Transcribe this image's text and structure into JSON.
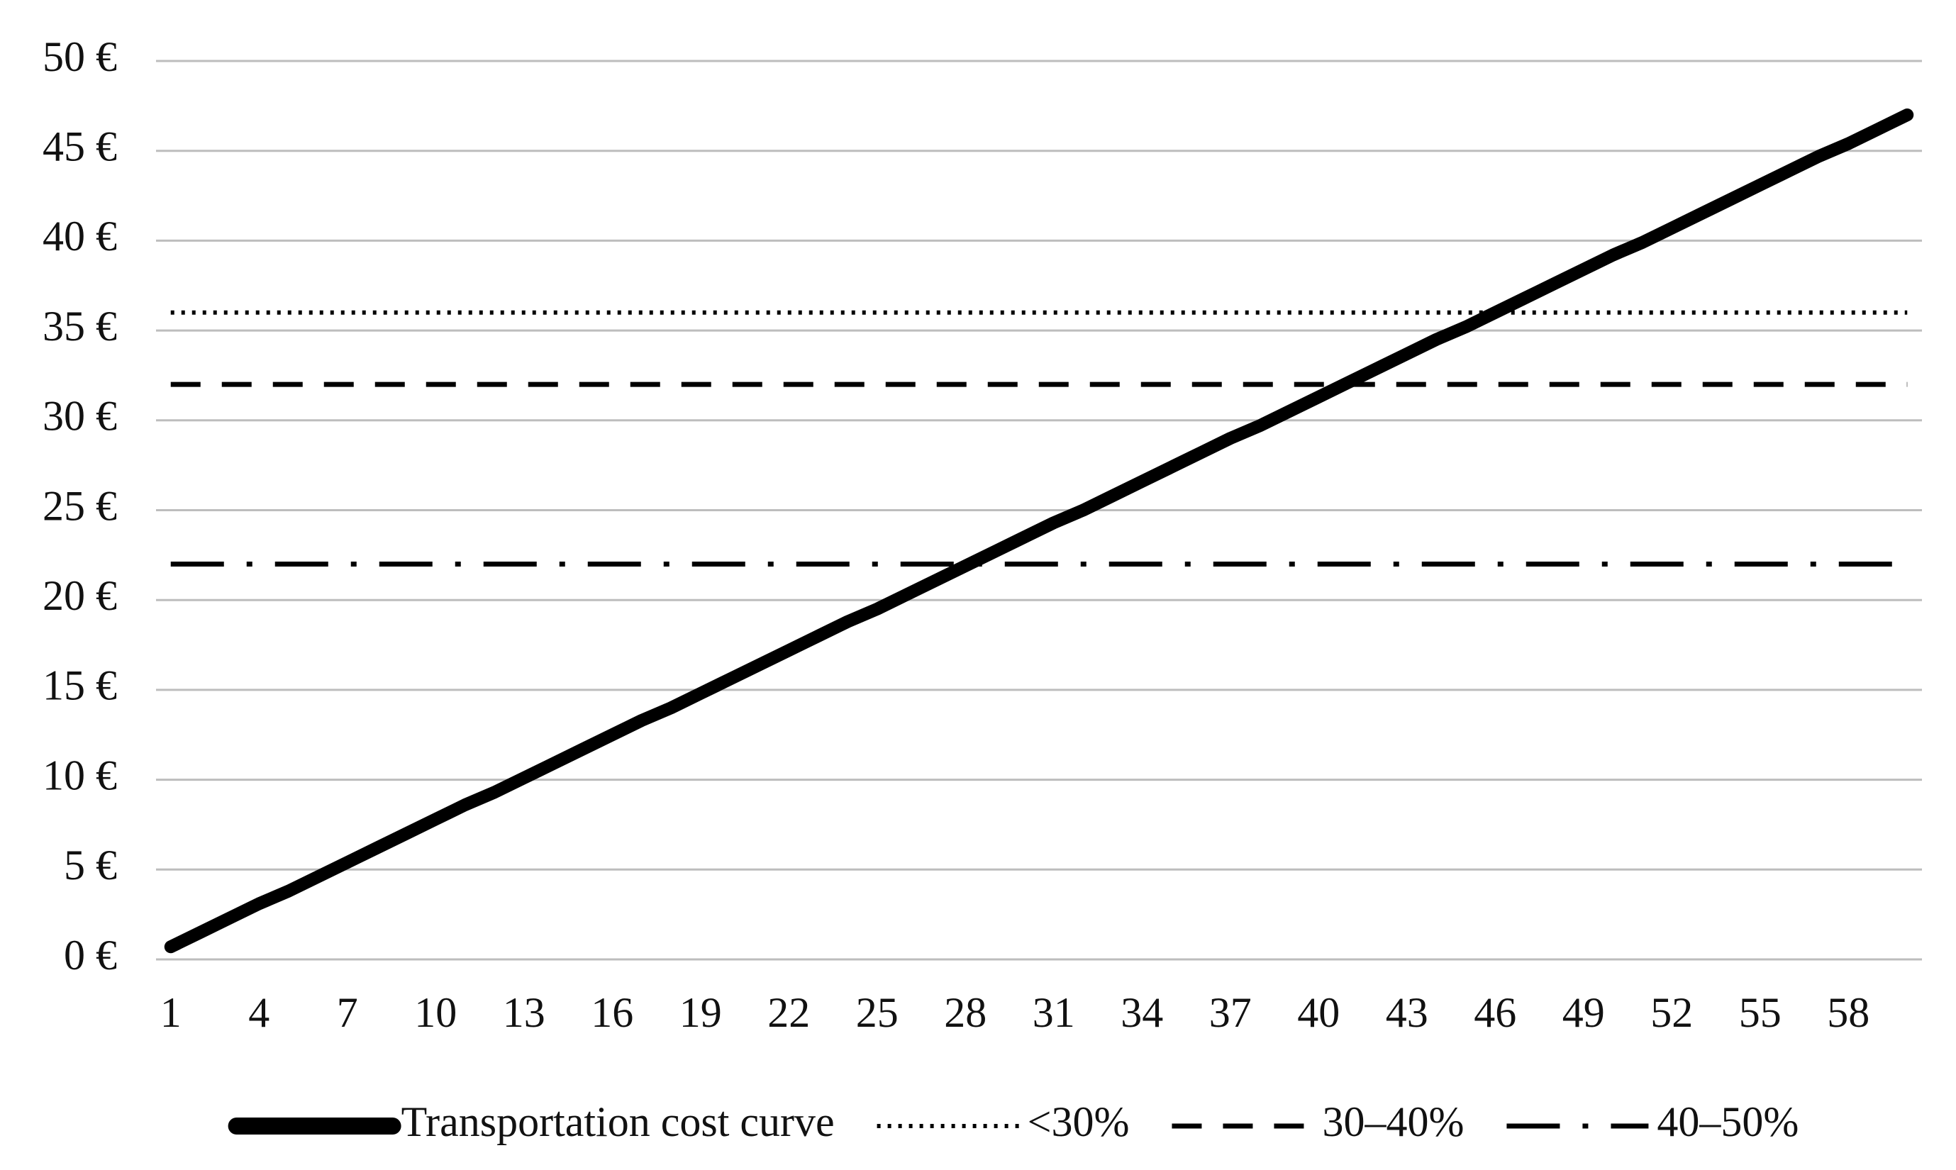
{
  "chart_data": {
    "type": "line",
    "x": [
      1,
      2,
      3,
      4,
      5,
      6,
      7,
      8,
      9,
      10,
      11,
      12,
      13,
      14,
      15,
      16,
      17,
      18,
      19,
      20,
      21,
      22,
      23,
      24,
      25,
      26,
      27,
      28,
      29,
      30,
      31,
      32,
      33,
      34,
      35,
      36,
      37,
      38,
      39,
      40,
      41,
      42,
      43,
      44,
      45,
      46,
      47,
      48,
      49,
      50,
      51,
      52,
      53,
      54,
      55,
      56,
      57,
      58,
      59,
      60
    ],
    "xlim": [
      0.5,
      60.5
    ],
    "xticks": [
      1,
      4,
      7,
      10,
      13,
      16,
      19,
      22,
      25,
      28,
      31,
      34,
      37,
      40,
      43,
      46,
      49,
      52,
      55,
      58
    ],
    "ylim": [
      0,
      50
    ],
    "yticks": [
      {
        "value": 0,
        "label": "0 €"
      },
      {
        "value": 5,
        "label": "5 €"
      },
      {
        "value": 10,
        "label": "10 €"
      },
      {
        "value": 15,
        "label": "15 €"
      },
      {
        "value": 20,
        "label": "20 €"
      },
      {
        "value": 25,
        "label": "25 €"
      },
      {
        "value": 30,
        "label": "30 €"
      },
      {
        "value": 35,
        "label": "35 €"
      },
      {
        "value": 40,
        "label": "40 €"
      },
      {
        "value": 45,
        "label": "45 €"
      },
      {
        "value": 50,
        "label": "50 €"
      }
    ],
    "grid": true,
    "legend": "bottom",
    "series": [
      {
        "name": "Transportation cost curve",
        "color": "#000000",
        "dash": "solid",
        "values": [
          0.7,
          1.5,
          2.3,
          3.1,
          3.8,
          4.6,
          5.4,
          6.2,
          7.0,
          7.8,
          8.6,
          9.3,
          10.1,
          10.9,
          11.7,
          12.5,
          13.3,
          14.0,
          14.8,
          15.6,
          16.4,
          17.2,
          18.0,
          18.8,
          19.5,
          20.3,
          21.1,
          21.9,
          22.7,
          23.5,
          24.3,
          25.0,
          25.8,
          26.6,
          27.4,
          28.2,
          29.0,
          29.7,
          30.5,
          31.3,
          32.1,
          32.9,
          33.7,
          34.5,
          35.2,
          36.0,
          36.8,
          37.6,
          38.4,
          39.2,
          39.9,
          40.7,
          41.5,
          42.3,
          43.1,
          43.9,
          44.7,
          45.4,
          46.2,
          47.0
        ]
      },
      {
        "name": "<30%",
        "color": "#000000",
        "dash": "dotted",
        "values": [
          36,
          36,
          36,
          36,
          36,
          36,
          36,
          36,
          36,
          36,
          36,
          36,
          36,
          36,
          36,
          36,
          36,
          36,
          36,
          36,
          36,
          36,
          36,
          36,
          36,
          36,
          36,
          36,
          36,
          36,
          36,
          36,
          36,
          36,
          36,
          36,
          36,
          36,
          36,
          36,
          36,
          36,
          36,
          36,
          36,
          36,
          36,
          36,
          36,
          36,
          36,
          36,
          36,
          36,
          36,
          36,
          36,
          36,
          36,
          36
        ]
      },
      {
        "name": "30–40%",
        "color": "#000000",
        "dash": "dashed",
        "values": [
          32,
          32,
          32,
          32,
          32,
          32,
          32,
          32,
          32,
          32,
          32,
          32,
          32,
          32,
          32,
          32,
          32,
          32,
          32,
          32,
          32,
          32,
          32,
          32,
          32,
          32,
          32,
          32,
          32,
          32,
          32,
          32,
          32,
          32,
          32,
          32,
          32,
          32,
          32,
          32,
          32,
          32,
          32,
          32,
          32,
          32,
          32,
          32,
          32,
          32,
          32,
          32,
          32,
          32,
          32,
          32,
          32,
          32,
          32,
          32
        ]
      },
      {
        "name": "40–50%",
        "color": "#000000",
        "dash": "dashdot",
        "values": [
          22,
          22,
          22,
          22,
          22,
          22,
          22,
          22,
          22,
          22,
          22,
          22,
          22,
          22,
          22,
          22,
          22,
          22,
          22,
          22,
          22,
          22,
          22,
          22,
          22,
          22,
          22,
          22,
          22,
          22,
          22,
          22,
          22,
          22,
          22,
          22,
          22,
          22,
          22,
          22,
          22,
          22,
          22,
          22,
          22,
          22,
          22,
          22,
          22,
          22,
          22,
          22,
          22,
          22,
          22,
          22,
          22,
          22,
          22,
          22
        ]
      }
    ]
  }
}
